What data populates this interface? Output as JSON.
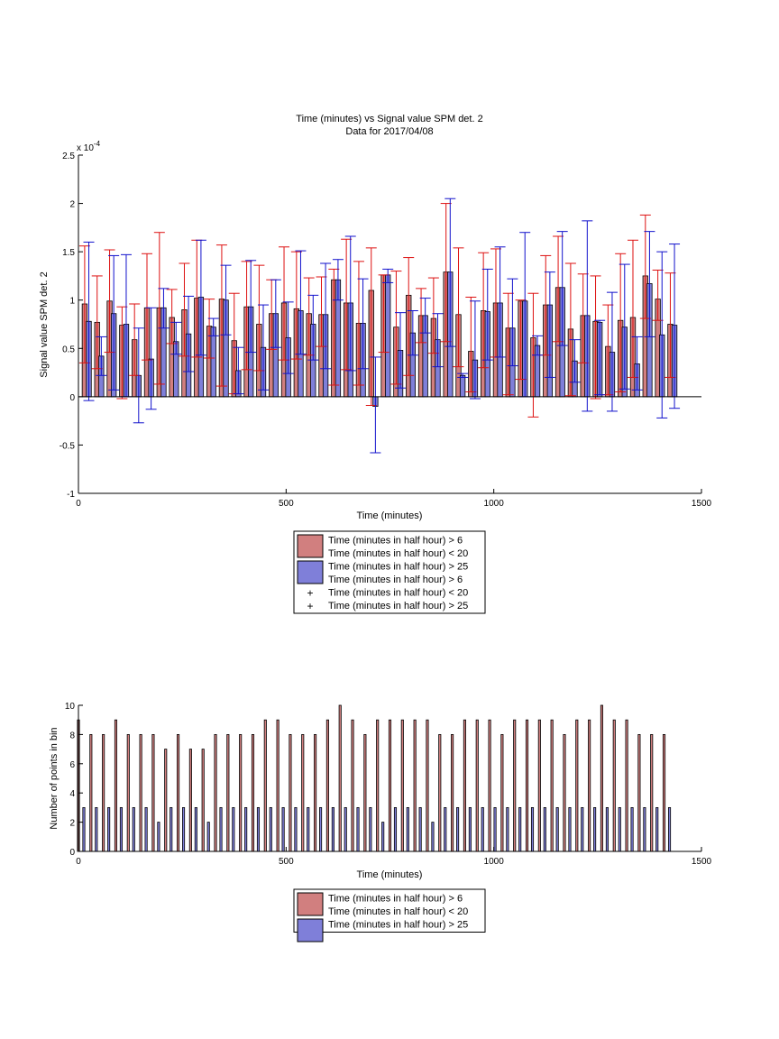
{
  "colors": {
    "red_fill": "#d17f7f",
    "blue_fill": "#7f7fd9",
    "red_line": "#dd1111",
    "blue_line": "#1111cc",
    "axis": "#000000"
  },
  "chart_data": [
    {
      "type": "bar",
      "title": "Time (minutes) vs Signal value SPM det. 2",
      "subtitle": "Data for 2017/04/08",
      "xlabel": "Time (minutes)",
      "ylabel": "Signal value SPM det. 2",
      "y_multiplier": "x 10",
      "y_exponent": "-4",
      "xlim": [
        0,
        1500
      ],
      "ylim": [
        -1,
        2.5
      ],
      "xticks": [
        0,
        500,
        1000,
        1500
      ],
      "yticks": [
        -1,
        -0.5,
        0,
        0.5,
        1,
        1.5,
        2,
        2.5
      ],
      "grid": false,
      "legend_position": "below",
      "legend": [
        {
          "label": "Time (minutes in half hour) > 6",
          "kind": "patch",
          "color": "red"
        },
        {
          "label": "Time (minutes in half hour) < 20",
          "kind": "none"
        },
        {
          "label": "Time (minutes in half hour) > 25",
          "kind": "patch",
          "color": "blue"
        },
        {
          "label": "Time (minutes in half hour) > 6",
          "kind": "none"
        },
        {
          "label": "Time (minutes in half hour) < 20",
          "kind": "marker",
          "color": "red"
        },
        {
          "label": "Time (minutes in half hour) > 25",
          "kind": "marker",
          "color": "blue"
        }
      ],
      "series": [
        {
          "color": "red",
          "x": [
            15,
            45,
            75,
            105,
            135,
            165,
            195,
            225,
            255,
            285,
            315,
            345,
            375,
            405,
            435,
            465,
            495,
            525,
            555,
            585,
            615,
            645,
            675,
            705,
            735,
            765,
            795,
            825,
            855,
            885,
            915,
            945,
            975,
            1005,
            1035,
            1065,
            1095,
            1125,
            1155,
            1185,
            1215,
            1245,
            1275,
            1305,
            1335,
            1365,
            1395,
            1425
          ],
          "values": [
            0.96,
            0.77,
            0.99,
            0.74,
            0.59,
            0.92,
            0.92,
            0.82,
            0.9,
            1.02,
            0.73,
            1.01,
            0.58,
            0.93,
            0.75,
            0.86,
            0.97,
            0.91,
            0.86,
            0.85,
            1.21,
            0.97,
            0.76,
            1.1,
            1.26,
            0.72,
            1.05,
            0.84,
            0.81,
            1.29,
            0.85,
            0.47,
            0.89,
            0.97,
            0.71,
            0.99,
            0.61,
            0.95,
            1.13,
            0.7,
            0.84,
            0.78,
            0.52,
            0.79,
            0.82,
            1.25,
            1.01,
            0.75
          ],
          "err_low": [
            0.35,
            0.29,
            0.46,
            -0.02,
            0.22,
            0.38,
            0.13,
            0.55,
            0.42,
            0.41,
            0.4,
            0.11,
            0.03,
            0.28,
            0.27,
            0.49,
            0.38,
            0.39,
            0.43,
            0.52,
            0.12,
            0.28,
            0.12,
            -0.09,
            0.46,
            0.13,
            0.22,
            0.56,
            0.45,
            0.57,
            0.31,
            0.05,
            0.3,
            0.41,
            0.02,
            0.18,
            -0.21,
            0.43,
            0.57,
            0.01,
            0.35,
            -0.02,
            0.02,
            0.05,
            0.2,
            0.81,
            0.79,
            0.2
          ],
          "err_high": [
            1.56,
            1.25,
            1.52,
            0.93,
            0.96,
            1.48,
            1.7,
            1.11,
            1.38,
            1.62,
            1.01,
            1.57,
            1.07,
            1.4,
            1.36,
            1.21,
            1.55,
            1.5,
            1.23,
            1.24,
            1.32,
            1.63,
            1.4,
            1.54,
            1.26,
            1.3,
            1.44,
            1.12,
            1.23,
            2.0,
            1.54,
            1.03,
            1.49,
            1.53,
            1.07,
            1.0,
            1.07,
            1.46,
            1.66,
            1.38,
            1.27,
            1.25,
            0.95,
            1.48,
            1.62,
            1.88,
            1.31,
            1.28
          ]
        },
        {
          "color": "blue",
          "x": [
            25,
            55,
            85,
            115,
            145,
            175,
            205,
            235,
            265,
            295,
            325,
            355,
            385,
            415,
            445,
            475,
            505,
            535,
            565,
            595,
            625,
            655,
            685,
            715,
            745,
            775,
            805,
            835,
            865,
            895,
            925,
            955,
            985,
            1015,
            1045,
            1075,
            1105,
            1135,
            1165,
            1195,
            1225,
            1255,
            1285,
            1315,
            1345,
            1375,
            1405,
            1435
          ],
          "values": [
            0.78,
            0.42,
            0.86,
            0.75,
            0.22,
            0.39,
            0.92,
            0.57,
            0.65,
            1.03,
            0.72,
            1.0,
            0.27,
            0.93,
            0.51,
            0.86,
            0.61,
            0.89,
            0.75,
            0.85,
            1.21,
            0.97,
            0.76,
            -0.1,
            1.26,
            0.48,
            0.66,
            0.84,
            0.59,
            1.29,
            0.22,
            0.38,
            0.88,
            0.97,
            0.71,
            0.99,
            0.53,
            0.95,
            1.13,
            0.37,
            0.84,
            0.77,
            0.46,
            0.72,
            0.34,
            1.17,
            0.64,
            0.74
          ],
          "err_low": [
            -0.04,
            0.22,
            0.07,
            0.0,
            -0.27,
            -0.13,
            0.71,
            0.44,
            0.26,
            0.43,
            0.63,
            0.64,
            0.03,
            0.46,
            0.07,
            0.51,
            0.24,
            0.44,
            0.38,
            0.29,
            1.0,
            0.27,
            0.29,
            -0.58,
            1.18,
            0.09,
            0.43,
            0.66,
            0.31,
            0.52,
            0.2,
            -0.02,
            0.38,
            0.41,
            0.32,
            0.0,
            0.43,
            0.2,
            0.53,
            0.15,
            -0.15,
            0.02,
            -0.15,
            0.08,
            0.07,
            0.62,
            -0.22,
            -0.12
          ],
          "err_high": [
            1.6,
            0.62,
            1.46,
            1.47,
            0.71,
            0.92,
            1.12,
            0.77,
            1.04,
            1.62,
            0.81,
            1.36,
            0.51,
            1.41,
            0.95,
            1.21,
            0.98,
            1.51,
            1.05,
            1.38,
            1.42,
            1.66,
            1.22,
            0.41,
            1.32,
            0.87,
            0.89,
            1.02,
            0.86,
            2.05,
            0.24,
            0.99,
            1.32,
            1.55,
            1.22,
            1.7,
            0.63,
            1.29,
            1.71,
            0.59,
            1.82,
            0.79,
            1.08,
            1.37,
            0.62,
            1.71,
            1.5,
            1.58
          ]
        }
      ]
    },
    {
      "type": "bar",
      "title": "",
      "xlabel": "Time (minutes)",
      "ylabel": "Number of points in bin",
      "xlim": [
        0,
        1500
      ],
      "ylim": [
        0,
        10
      ],
      "xticks": [
        0,
        500,
        1000,
        1500
      ],
      "yticks": [
        0,
        2,
        4,
        6,
        8,
        10
      ],
      "grid": false,
      "legend_position": "below",
      "legend": [
        {
          "label": "Time (minutes in half hour) > 6",
          "kind": "patch",
          "color": "red"
        },
        {
          "label": "Time (minutes in half hour) < 20",
          "kind": "none"
        },
        {
          "label": "Time (minutes in half hour) > 25",
          "kind": "patch",
          "color": "blue"
        }
      ],
      "series": [
        {
          "color": "red",
          "x": [
            0,
            30,
            60,
            90,
            120,
            150,
            180,
            210,
            240,
            270,
            300,
            330,
            360,
            390,
            420,
            450,
            480,
            510,
            540,
            570,
            600,
            630,
            660,
            690,
            720,
            750,
            780,
            810,
            840,
            870,
            900,
            930,
            960,
            990,
            1020,
            1050,
            1080,
            1110,
            1140,
            1170,
            1200,
            1230,
            1260,
            1290,
            1320,
            1350,
            1380,
            1410
          ],
          "values": [
            9,
            8,
            8,
            9,
            8,
            8,
            8,
            7,
            8,
            7,
            7,
            8,
            8,
            8,
            8,
            9,
            9,
            8,
            8,
            8,
            9,
            10,
            9,
            8,
            9,
            9,
            9,
            9,
            9,
            8,
            8,
            9,
            9,
            9,
            8,
            9,
            9,
            9,
            9,
            8,
            9,
            9,
            10,
            9,
            9,
            8,
            8,
            8
          ]
        },
        {
          "color": "blue",
          "x": [
            13,
            43,
            73,
            103,
            133,
            163,
            193,
            223,
            253,
            283,
            313,
            343,
            373,
            403,
            433,
            463,
            493,
            523,
            553,
            583,
            613,
            643,
            673,
            703,
            733,
            763,
            793,
            823,
            853,
            883,
            913,
            943,
            973,
            1003,
            1033,
            1063,
            1093,
            1123,
            1153,
            1183,
            1213,
            1243,
            1273,
            1303,
            1333,
            1363,
            1393,
            1423
          ],
          "values": [
            3,
            3,
            3,
            3,
            3,
            3,
            2,
            3,
            3,
            3,
            2,
            3,
            3,
            3,
            3,
            3,
            3,
            3,
            3,
            3,
            3,
            3,
            3,
            3,
            2,
            3,
            3,
            3,
            2,
            3,
            3,
            3,
            3,
            3,
            3,
            3,
            3,
            3,
            3,
            3,
            3,
            3,
            3,
            3,
            3,
            3,
            3,
            3
          ]
        }
      ]
    }
  ]
}
